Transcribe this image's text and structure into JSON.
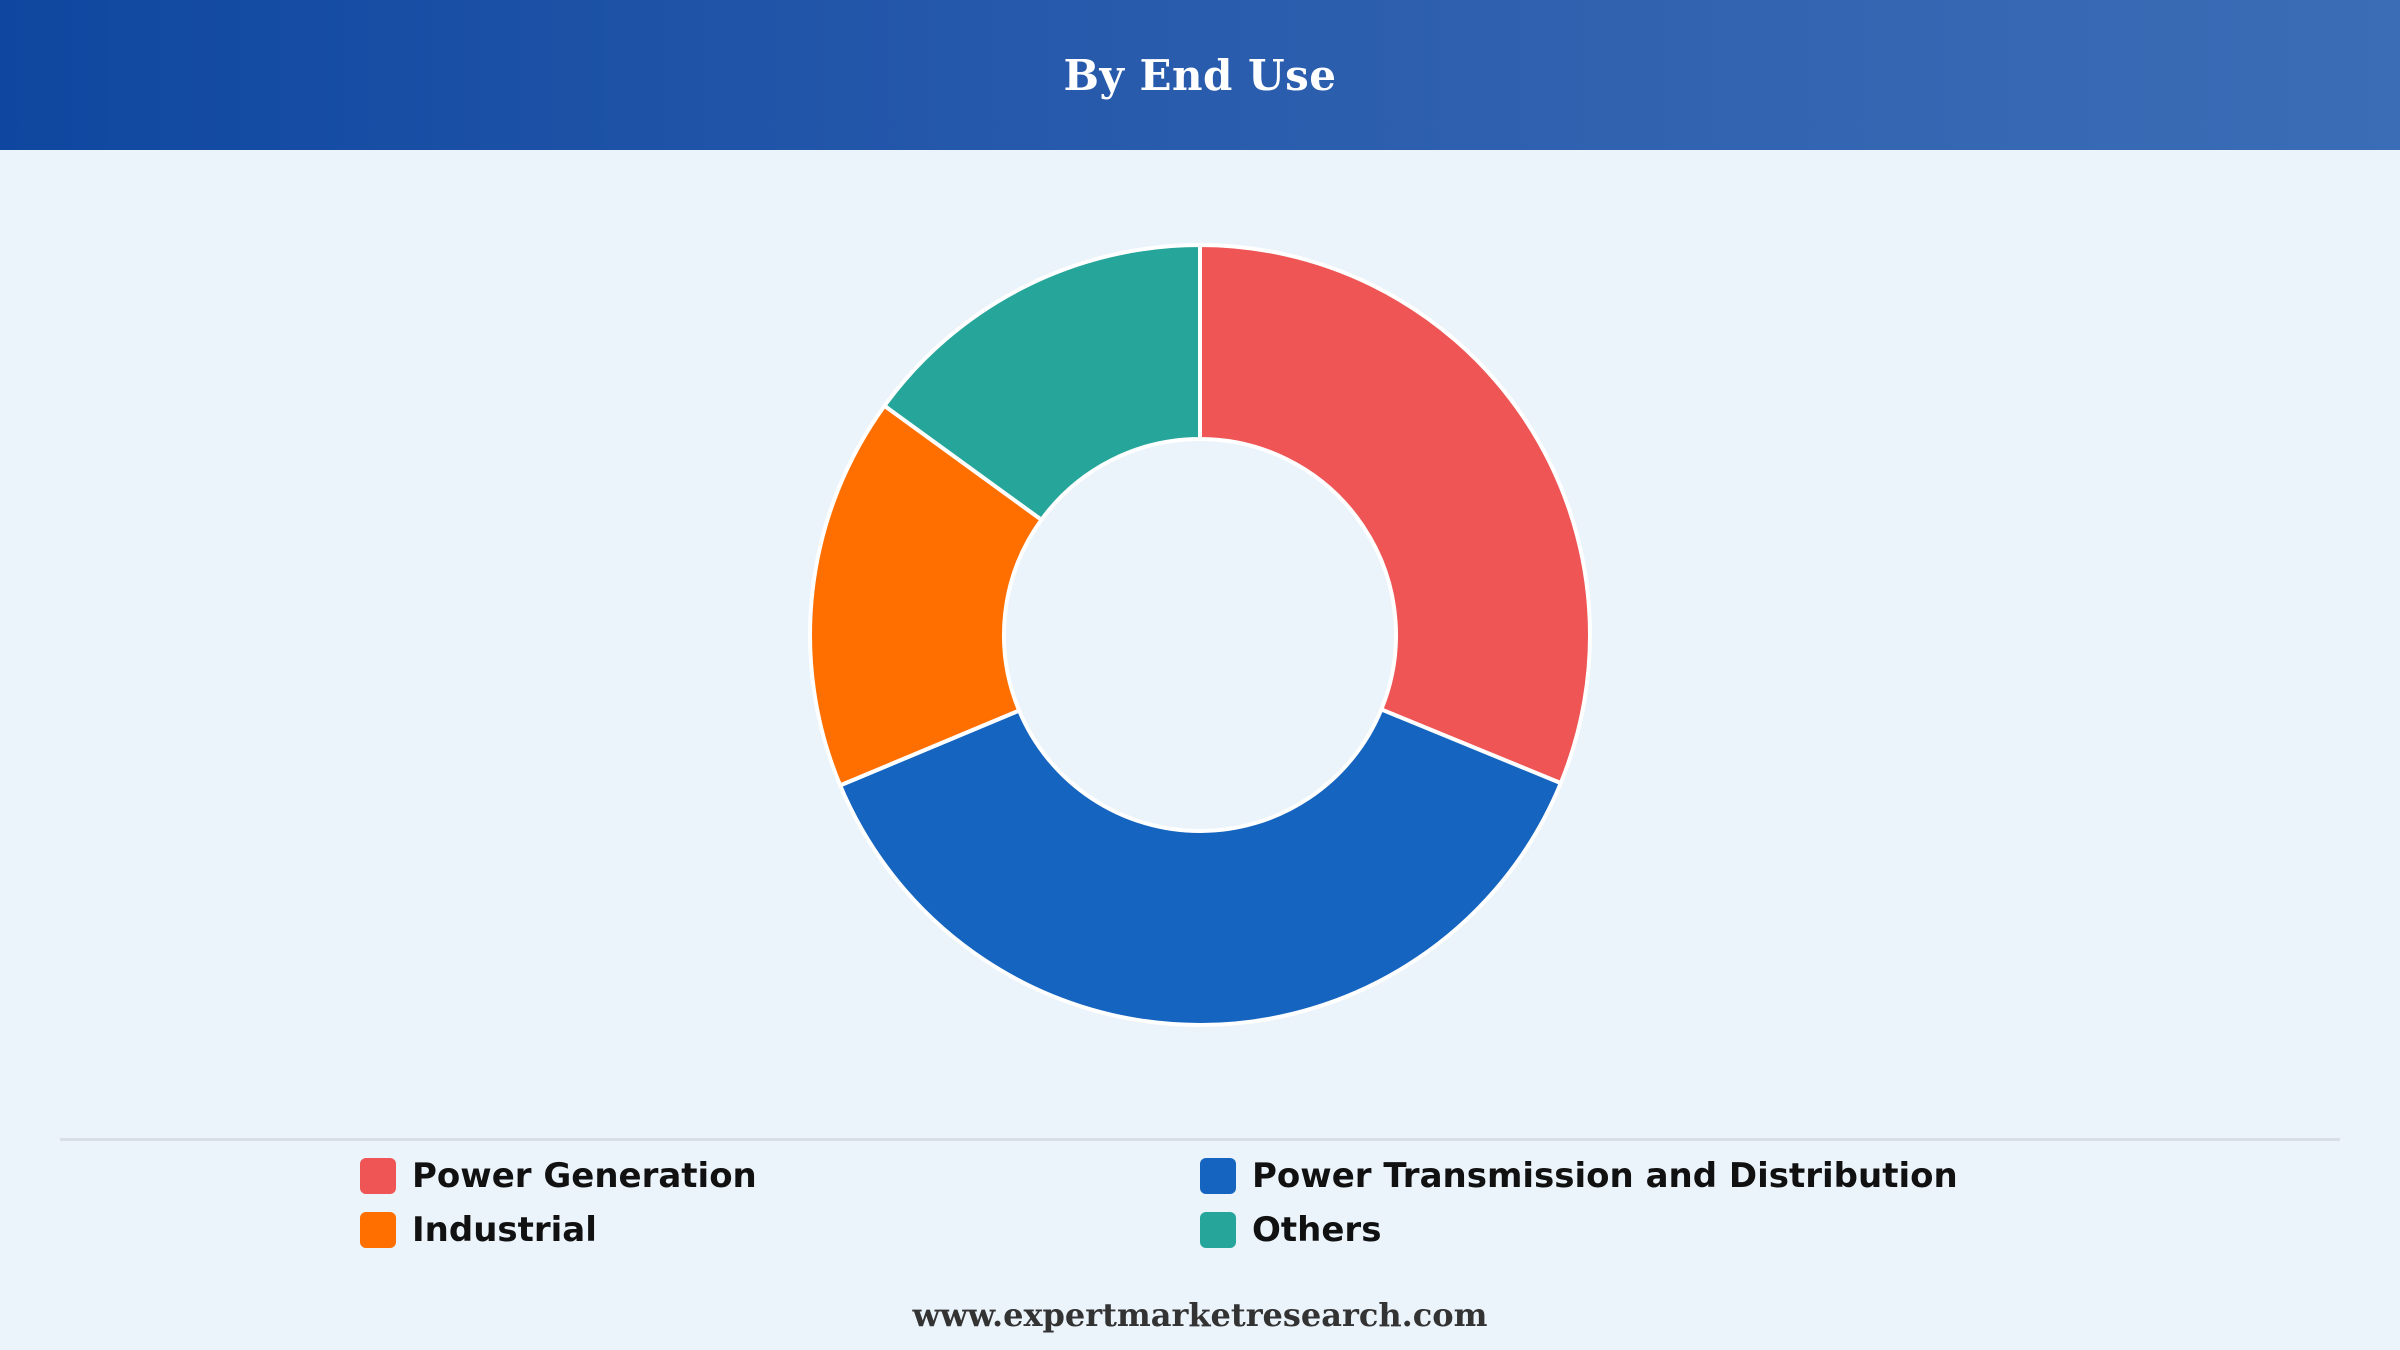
{
  "header": {
    "title": "By End Use"
  },
  "chart_data": {
    "type": "pie",
    "style": "donut",
    "title": "By End Use",
    "categories": [
      "Power Generation",
      "Power Transmission and Distribution",
      "Industrial",
      "Others"
    ],
    "values": [
      31.2,
      37.5,
      16.3,
      15.0
    ],
    "unit": "%",
    "colors": [
      "#ef5555",
      "#1565c0",
      "#ff6f00",
      "#26a69a"
    ],
    "legend_position": "bottom"
  },
  "legend": {
    "items": [
      {
        "label": "Power Generation",
        "color": "#ef5555"
      },
      {
        "label": "Power Transmission and Distribution",
        "color": "#1565c0"
      },
      {
        "label": "Industrial",
        "color": "#ff6f00"
      },
      {
        "label": "Others",
        "color": "#26a69a"
      }
    ]
  },
  "footer": {
    "url": "www.expertmarketresearch.com"
  }
}
